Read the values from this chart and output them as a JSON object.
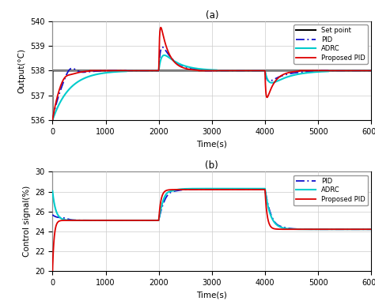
{
  "title_a": "(a)",
  "title_b": "(b)",
  "xlabel": "Time(s)",
  "ylabel_a": "Output(°C)",
  "ylabel_b": "Control signal(%)",
  "xlim": [
    0,
    6000
  ],
  "ylim_a": [
    536,
    540
  ],
  "ylim_b": [
    20,
    30
  ],
  "yticks_a": [
    536,
    537,
    538,
    539,
    540
  ],
  "yticks_b": [
    20,
    22,
    24,
    26,
    28,
    30
  ],
  "xticks": [
    0,
    1000,
    2000,
    3000,
    4000,
    5000,
    6000
  ],
  "colors": {
    "setpoint": "#000000",
    "pid": "#1111CC",
    "adrc": "#00CCCC",
    "proposed": "#DD0000"
  },
  "legend_a": [
    "Set point",
    "PID",
    "ADRC",
    "Proposed PID"
  ],
  "legend_b": [
    "PID",
    "ADRC",
    "Proposed PID"
  ],
  "grid_color": "#CCCCCC"
}
